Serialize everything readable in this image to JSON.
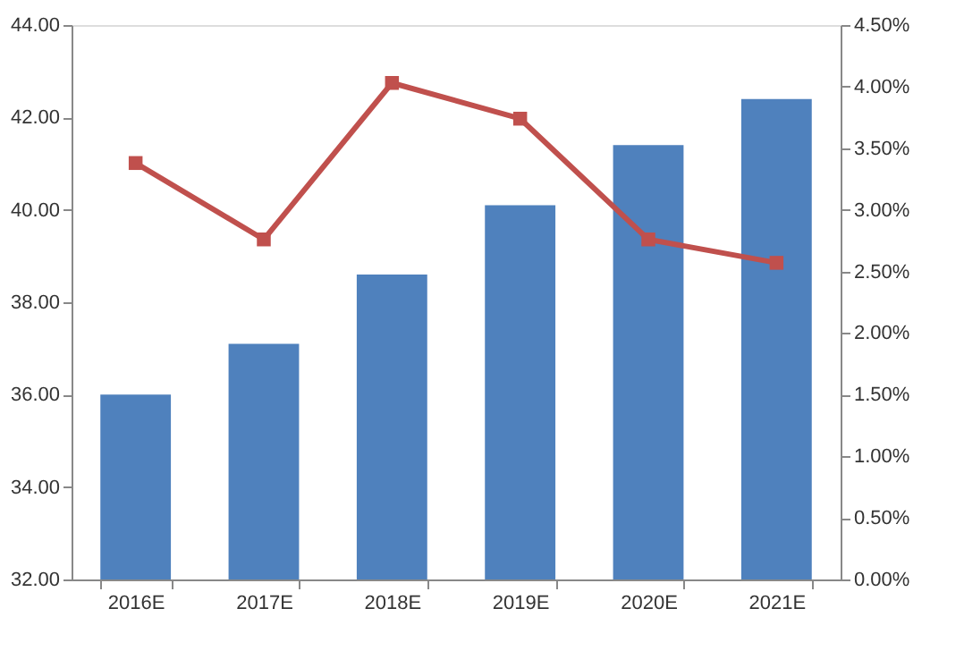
{
  "chart_data": {
    "type": "bar",
    "categories": [
      "2016E",
      "2017E",
      "2018E",
      "2019E",
      "2020E",
      "2021E"
    ],
    "series": [
      {
        "color": "#4f81bd",
        "values": [
          36.0,
          37.1,
          38.6,
          40.1,
          41.4,
          42.4
        ]
      },
      {
        "type": "line",
        "axis": "y2",
        "color": "#c0504d",
        "marker": "square",
        "values": [
          3.38,
          2.76,
          4.03,
          3.74,
          2.76,
          2.57
        ]
      }
    ],
    "ylim": [
      32,
      44
    ],
    "yticks": [
      {
        "value": 32,
        "label": "32.00"
      },
      {
        "value": 34,
        "label": "34.00"
      },
      {
        "value": 36,
        "label": "36.00"
      },
      {
        "value": 38,
        "label": "38.00"
      },
      {
        "value": 40,
        "label": "40.00"
      },
      {
        "value": 42,
        "label": "42.00"
      },
      {
        "value": 44,
        "label": "44.00"
      }
    ],
    "y2lim": [
      0,
      4.5
    ],
    "y2ticks": [
      {
        "value": 0,
        "label": "0.00%"
      },
      {
        "value": 0.5,
        "label": "0.50%"
      },
      {
        "value": 1,
        "label": "1.00%"
      },
      {
        "value": 1.5,
        "label": "1.50%"
      },
      {
        "value": 2,
        "label": "2.00%"
      },
      {
        "value": 2.5,
        "label": "2.50%"
      },
      {
        "value": 3,
        "label": "3.00%"
      },
      {
        "value": 3.5,
        "label": "3.50%"
      },
      {
        "value": 4,
        "label": "4.00%"
      },
      {
        "value": 4.5,
        "label": "4.50%"
      }
    ],
    "grid": false
  }
}
